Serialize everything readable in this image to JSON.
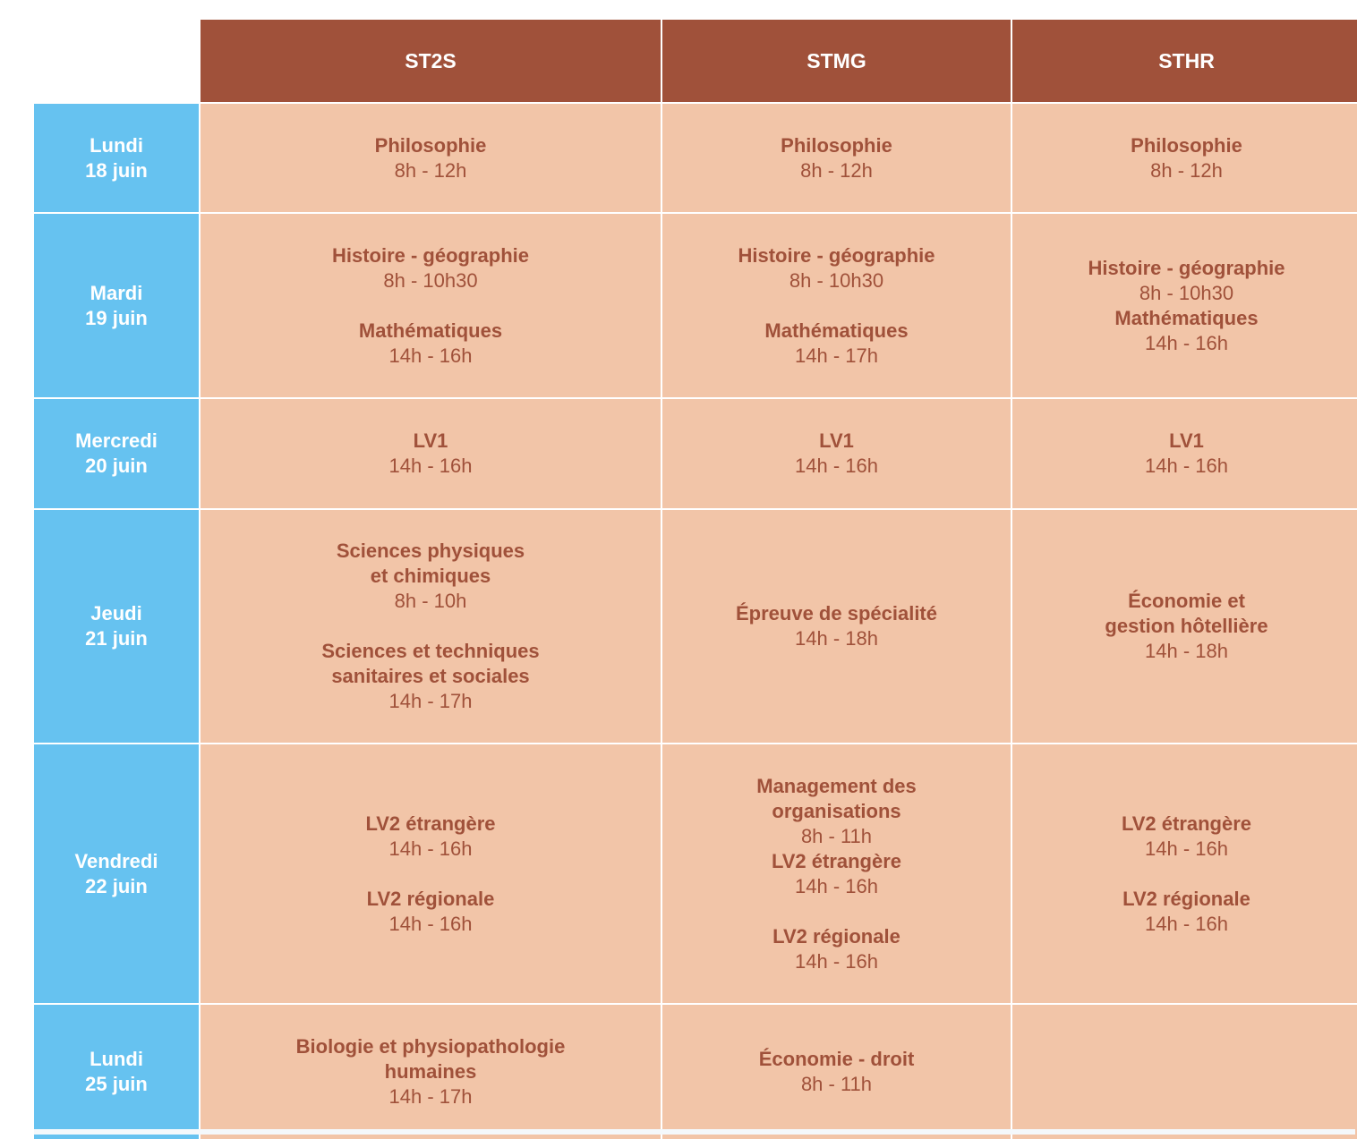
{
  "headers": [
    "ST2S",
    "STMG",
    "STHR"
  ],
  "days": [
    {
      "day": "Lundi",
      "date": "18 juin",
      "cells": [
        [
          {
            "subject": "Philosophie",
            "time": "8h - 12h"
          }
        ],
        [
          {
            "subject": "Philosophie",
            "time": "8h - 12h"
          }
        ],
        [
          {
            "subject": "Philosophie",
            "time": "8h - 12h"
          }
        ]
      ]
    },
    {
      "day": "Mardi",
      "date": "19 juin",
      "cells": [
        [
          {
            "subject": "Histoire - géographie",
            "time": "8h - 10h30"
          },
          {
            "subject": "Mathématiques",
            "time": "14h - 16h"
          }
        ],
        [
          {
            "subject": "Histoire - géographie",
            "time": "8h - 10h30"
          },
          {
            "subject": "Mathématiques",
            "time": "14h - 17h"
          }
        ],
        [
          {
            "subject": "Histoire - géographie",
            "time": "8h - 10h30"
          },
          {
            "subject": "Mathématiques",
            "time": "14h - 16h"
          }
        ]
      ]
    },
    {
      "day": "Mercredi",
      "date": "20 juin",
      "cells": [
        [
          {
            "subject": "LV1",
            "time": "14h - 16h"
          }
        ],
        [
          {
            "subject": "LV1",
            "time": "14h - 16h"
          }
        ],
        [
          {
            "subject": "LV1",
            "time": "14h - 16h"
          }
        ]
      ]
    },
    {
      "day": "Jeudi",
      "date": "21 juin",
      "cells": [
        [
          {
            "subject": "Sciences physiques\net chimiques",
            "time": "8h - 10h"
          },
          {
            "subject": "Sciences et techniques\nsanitaires et sociales",
            "time": "14h - 17h"
          }
        ],
        [
          {
            "subject": "Épreuve de spécialité",
            "time": "14h - 18h"
          }
        ],
        [
          {
            "subject": "Économie et\ngestion hôtellière",
            "time": "14h - 18h"
          }
        ]
      ]
    },
    {
      "day": "Vendredi",
      "date": "22 juin",
      "cells": [
        [
          {
            "subject": "LV2 étrangère",
            "time": "14h - 16h"
          },
          {
            "subject": "LV2 régionale",
            "time": "14h - 16h"
          }
        ],
        [
          {
            "subject": "Management des\norganisations",
            "time": "8h - 11h"
          },
          {
            "subject": "LV2 étrangère",
            "time": "14h - 16h"
          },
          {
            "subject": "LV2 régionale",
            "time": "14h - 16h"
          }
        ],
        [
          {
            "subject": "LV2 étrangère",
            "time": "14h - 16h"
          },
          {
            "subject": "LV2 régionale",
            "time": "14h - 16h"
          }
        ]
      ]
    },
    {
      "day": "Lundi",
      "date": "25 juin",
      "cells": [
        [
          {
            "subject": "Biologie et physiopathologie\nhumaines",
            "time": "14h - 17h"
          }
        ],
        [
          {
            "subject": "Économie - droit",
            "time": "8h - 11h"
          }
        ],
        []
      ]
    }
  ]
}
